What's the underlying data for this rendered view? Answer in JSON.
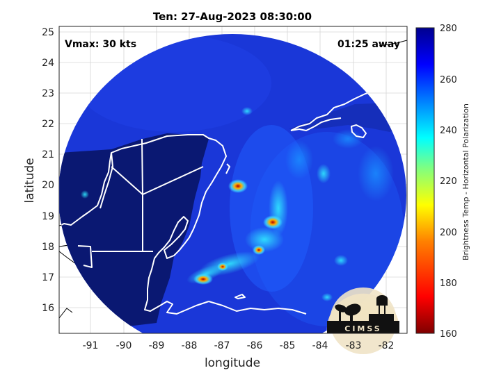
{
  "title": "Ten: 27-Aug-2023 08:30:00",
  "vmax_label": "Vmax: 30 kts",
  "time_away_label": "01:25 away",
  "xlabel": "longitude",
  "ylabel": "latitude",
  "x_ticks": [
    "-91",
    "-90",
    "-89",
    "-88",
    "-87",
    "-86",
    "-85",
    "-84",
    "-83",
    "-82"
  ],
  "y_ticks": [
    "25",
    "24",
    "23",
    "22",
    "21",
    "20",
    "19",
    "18",
    "17",
    "16"
  ],
  "colorbar": {
    "label": "Brightness Temp - Horizontal Polarization",
    "ticks": [
      "280",
      "260",
      "240",
      "220",
      "200",
      "180",
      "160"
    ],
    "range": [
      160,
      280
    ],
    "colormap": [
      "#7f0000",
      "#ff0000",
      "#ff8000",
      "#ffff00",
      "#80ff80",
      "#00ffff",
      "#0080ff",
      "#0000ff",
      "#00008f"
    ]
  },
  "logo_text": "CIMSS",
  "colors": {
    "ocean_background": "#1a37d8",
    "land_cold": "#0a1872",
    "coastline": "#ffffff"
  }
}
